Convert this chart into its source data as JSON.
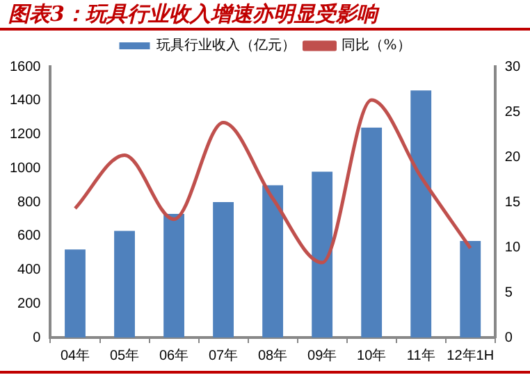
{
  "chart_data": {
    "type": "bar",
    "title": "图表3：玩具行业收入增速亦明显受影响",
    "categories": [
      "04年",
      "05年",
      "06年",
      "07年",
      "08年",
      "09年",
      "10年",
      "11年",
      "12年1H"
    ],
    "series": [
      {
        "name": "玩具行业收入（亿元）",
        "color": "#4f81bd",
        "values": [
          520,
          630,
          730,
          800,
          900,
          980,
          1240,
          1460,
          570
        ]
      },
      {
        "name": "同比（%）",
        "type": "line",
        "axis": "y2",
        "color": "#c0504d",
        "values": [
          14.3,
          20.2,
          13.1,
          23.8,
          15.4,
          8.3,
          26.3,
          17.8,
          9.9
        ]
      }
    ],
    "ylim": [
      0,
      1600
    ],
    "yticks": [
      0,
      200,
      400,
      600,
      800,
      1000,
      1200,
      1400,
      1600
    ],
    "y2lim": [
      0,
      30
    ],
    "y2ticks": [
      0,
      5,
      10,
      15,
      20,
      25,
      30
    ],
    "grid": false,
    "legend": "top",
    "marker": "none"
  }
}
